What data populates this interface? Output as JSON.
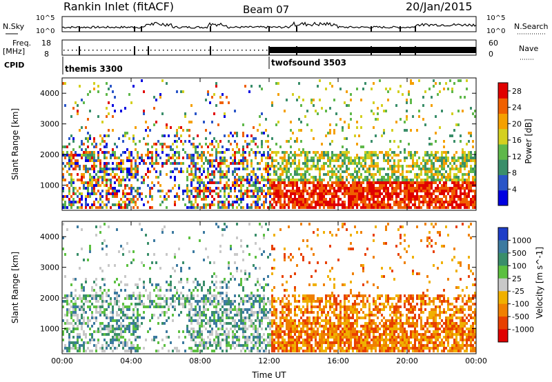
{
  "header": {
    "station": "Rankin Inlet (fitACF)",
    "beam": "Beam 07",
    "date": "20/Jan/2015"
  },
  "meta_panels": {
    "nsky": {
      "label": "N.Sky",
      "ticks": [
        "10^5",
        "10^0"
      ]
    },
    "nsearch": {
      "label": "N.Search",
      "ticks": [
        "10^5",
        "10^0"
      ]
    },
    "freq": {
      "label_top": "Freq.",
      "label_bottom": "[MHz]",
      "ticks": [
        "18",
        "8"
      ]
    },
    "nave": {
      "label": "Nave",
      "ticks": [
        "60",
        "0"
      ]
    },
    "cpid": {
      "label": "CPID",
      "modes": [
        {
          "name": "themis 3300",
          "start_hour": 0
        },
        {
          "name": "twofsound 3503",
          "start_hour": 12
        }
      ]
    }
  },
  "chart_data": [
    {
      "type": "heatmap",
      "quantity": "power",
      "ylabel": "Slant Range [km]",
      "xlabel": "Time UT",
      "x_ticks": [
        "00:00",
        "04:00",
        "08:00",
        "12:00",
        "16:00",
        "20:00",
        "00:00"
      ],
      "x_range_hours": [
        0,
        24
      ],
      "y_ticks": [
        1000,
        2000,
        3000,
        4000
      ],
      "y_range_km": [
        180,
        4500
      ],
      "colorbar": {
        "label": "Power [dB]",
        "ticks": [
          4,
          8,
          12,
          16,
          20,
          24,
          28
        ],
        "range": [
          0,
          30
        ],
        "colors": [
          "#0000e0",
          "#2a55c8",
          "#3a8e6a",
          "#5fb84a",
          "#d4d020",
          "#f5a000",
          "#f06000",
          "#e00000"
        ]
      }
    },
    {
      "type": "heatmap",
      "quantity": "velocity",
      "ylabel": "Slant Range [km]",
      "xlabel": "Time UT",
      "x_ticks": [
        "00:00",
        "04:00",
        "08:00",
        "12:00",
        "16:00",
        "20:00",
        "00:00"
      ],
      "x_range_hours": [
        0,
        24
      ],
      "y_ticks": [
        1000,
        2000,
        3000,
        4000
      ],
      "y_range_km": [
        180,
        4500
      ],
      "colorbar": {
        "label": "Velocity [m s^-1]",
        "ticks": [
          1000,
          500,
          100,
          25,
          -25,
          -100,
          -500,
          -1000
        ],
        "colors": [
          "#1e3ec8",
          "#3c7aa0",
          "#3a8e6a",
          "#5cc040",
          "#c8c8c8",
          "#f0b000",
          "#f08000",
          "#e84000",
          "#e00000"
        ]
      }
    }
  ]
}
